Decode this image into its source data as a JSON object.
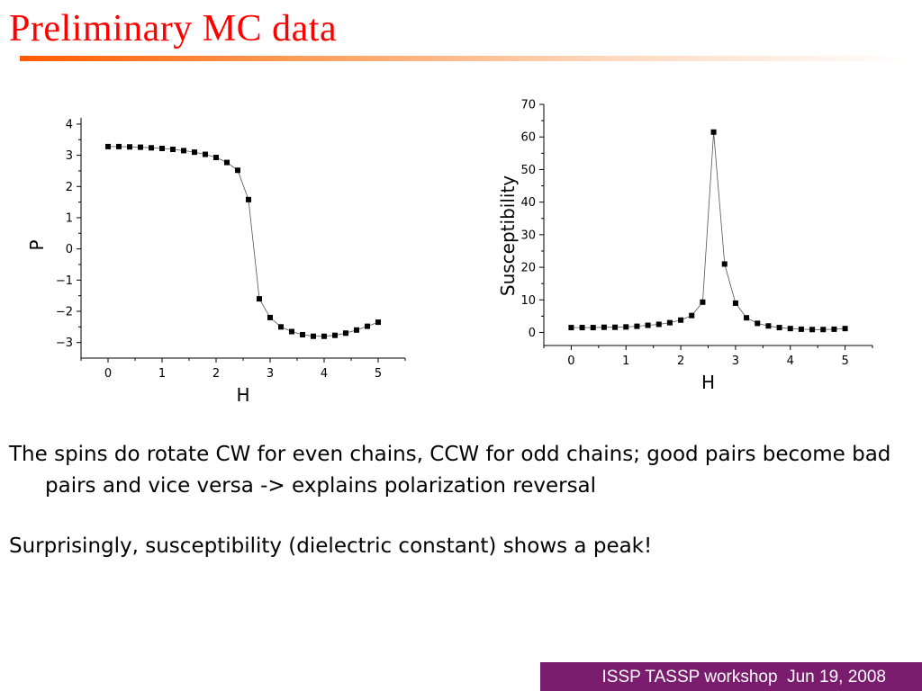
{
  "slide": {
    "title": "Preliminary MC data",
    "bullets": [
      "The spins do rotate CW for even chains, CCW for odd chains; good pairs become bad pairs and vice versa -> explains polarization reversal",
      "Surprisingly, susceptibility (dielectric constant) shows a peak!"
    ],
    "footer": "ISSP TASSP workshop  Jun 19, 2008"
  },
  "colors": {
    "title": "#ff0000",
    "rule_start": "#ff5a00",
    "footer_bg": "#7a1d6e",
    "footer_text": "#ffffff",
    "markers": "#000000"
  },
  "chart_data": [
    {
      "type": "line",
      "title": "",
      "xlabel": "H",
      "ylabel": "P",
      "xlim": [
        -0.5,
        5.5
      ],
      "ylim": [
        -3.5,
        4.2
      ],
      "xticks": [
        0,
        1,
        2,
        3,
        4,
        5
      ],
      "yticks": [
        -3,
        -2,
        -1,
        0,
        1,
        2,
        3,
        4
      ],
      "xtick_labels": [
        "0",
        "1",
        "2",
        "3",
        "4",
        "5"
      ],
      "ytick_labels": [
        "−3",
        "−2",
        "−1",
        "0",
        "1",
        "2",
        "3",
        "4"
      ],
      "grid": false,
      "series": [
        {
          "x": [
            0,
            0.2,
            0.4,
            0.6,
            0.8,
            1.0,
            1.2,
            1.4,
            1.6,
            1.8,
            2.0,
            2.2,
            2.4,
            2.6,
            2.8,
            3.0,
            3.2,
            3.4,
            3.6,
            3.8,
            4.0,
            4.2,
            4.4,
            4.6,
            4.8,
            5.0
          ],
          "y": [
            3.28,
            3.28,
            3.27,
            3.26,
            3.24,
            3.22,
            3.19,
            3.15,
            3.1,
            3.03,
            2.93,
            2.77,
            2.52,
            1.58,
            -1.6,
            -2.2,
            -2.5,
            -2.65,
            -2.75,
            -2.8,
            -2.8,
            -2.77,
            -2.7,
            -2.6,
            -2.48,
            -2.35
          ]
        }
      ]
    },
    {
      "type": "line",
      "title": "",
      "xlabel": "H",
      "ylabel": "Susceptibility",
      "xlim": [
        -0.5,
        5.5
      ],
      "ylim": [
        -4,
        70
      ],
      "xticks": [
        0,
        1,
        2,
        3,
        4,
        5
      ],
      "yticks": [
        0,
        10,
        20,
        30,
        40,
        50,
        60,
        70
      ],
      "xtick_labels": [
        "0",
        "1",
        "2",
        "3",
        "4",
        "5"
      ],
      "ytick_labels": [
        "0",
        "10",
        "20",
        "30",
        "40",
        "50",
        "60",
        "70"
      ],
      "grid": false,
      "series": [
        {
          "x": [
            0,
            0.2,
            0.4,
            0.6,
            0.8,
            1.0,
            1.2,
            1.4,
            1.6,
            1.8,
            2.0,
            2.2,
            2.4,
            2.6,
            2.8,
            3.0,
            3.2,
            3.4,
            3.6,
            3.8,
            4.0,
            4.2,
            4.4,
            4.6,
            4.8,
            5.0
          ],
          "y": [
            1.5,
            1.5,
            1.5,
            1.6,
            1.6,
            1.7,
            1.9,
            2.2,
            2.5,
            3.0,
            3.8,
            5.2,
            9.3,
            61.5,
            21.0,
            9.0,
            4.5,
            2.8,
            2.0,
            1.5,
            1.2,
            1.0,
            0.9,
            0.9,
            1.0,
            1.2
          ]
        }
      ]
    }
  ]
}
